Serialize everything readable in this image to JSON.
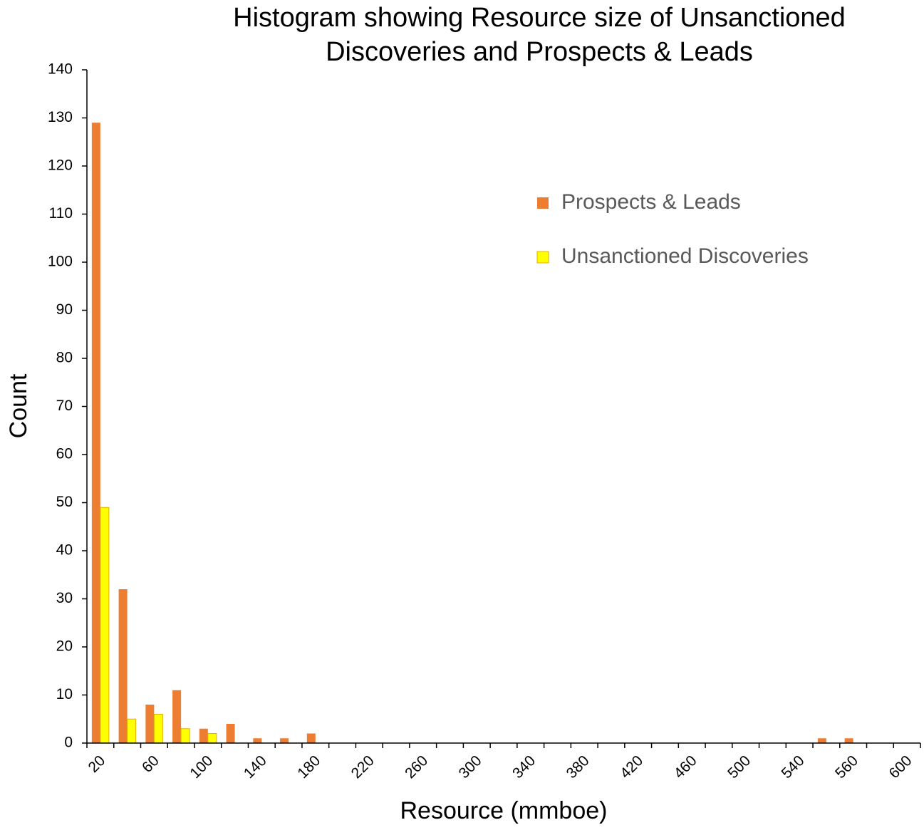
{
  "chart_data": {
    "type": "bar",
    "title": [
      "Histogram showing Resource size of Unsanctioned",
      "Discoveries and Prospects & Leads"
    ],
    "x_label": "Resource  (mmboe)",
    "y_label": "Count",
    "categories": [
      "20",
      null,
      "60",
      null,
      "100",
      null,
      "140",
      null,
      "180",
      null,
      "220",
      null,
      "260",
      null,
      "300",
      null,
      "340",
      null,
      "380",
      null,
      "420",
      null,
      "460",
      null,
      "500",
      null,
      "540",
      null,
      "560",
      null,
      "600"
    ],
    "series": [
      {
        "name": "Prospects & Leads",
        "color": "#ed7d31",
        "values": [
          129,
          32,
          8,
          11,
          3,
          4,
          1,
          1,
          2,
          0,
          0,
          0,
          0,
          0,
          0,
          0,
          0,
          0,
          0,
          0,
          0,
          0,
          0,
          0,
          0,
          0,
          0,
          1,
          1,
          0,
          0
        ]
      },
      {
        "name": "Unsanctioned Discoveries",
        "color": "#ffff00",
        "values": [
          49,
          5,
          6,
          3,
          2,
          0,
          0,
          0,
          0,
          0,
          0,
          0,
          0,
          0,
          0,
          0,
          0,
          0,
          0,
          0,
          0,
          0,
          0,
          0,
          0,
          0,
          0,
          0,
          0,
          0,
          0
        ]
      }
    ],
    "ylim": [
      0,
      140
    ],
    "yticks": [
      0,
      10,
      20,
      30,
      40,
      50,
      60,
      70,
      80,
      90,
      100,
      110,
      120,
      130,
      140
    ],
    "grid": false,
    "legend": "upper right"
  }
}
